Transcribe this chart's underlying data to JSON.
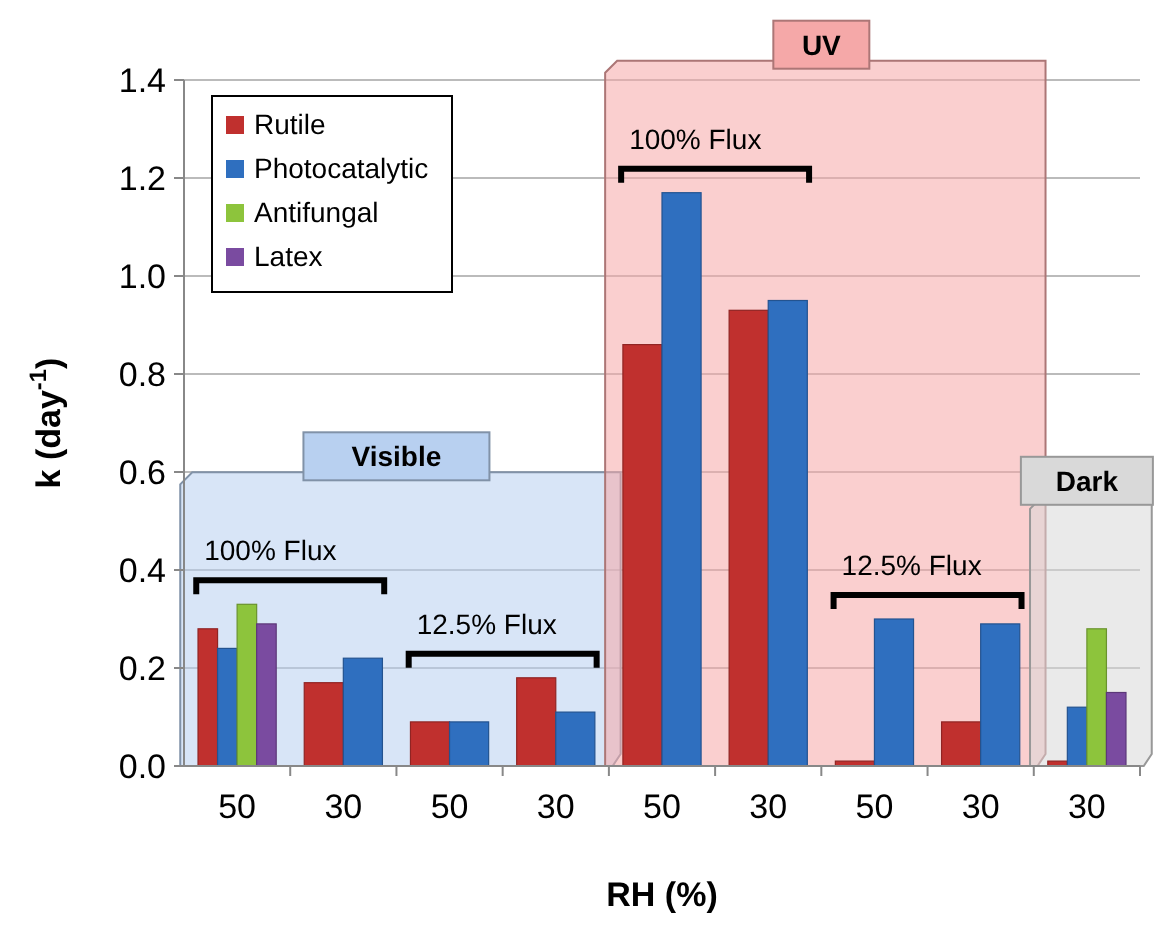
{
  "chart_data": {
    "type": "bar",
    "ylabel": "k (day$^{-1}$)",
    "xlabel": "RH (%)",
    "categories": [
      "50",
      "30",
      "50",
      "30",
      "50",
      "30",
      "50",
      "30",
      "30"
    ],
    "series": [
      {
        "name": "Rutile",
        "color": "#c0302e",
        "values": [
          0.28,
          0.17,
          0.09,
          0.18,
          0.86,
          0.93,
          0.01,
          0.09,
          0.01
        ]
      },
      {
        "name": "Photocatalytic",
        "color": "#2f6fbf",
        "values": [
          0.24,
          0.22,
          0.09,
          0.11,
          1.17,
          0.95,
          0.3,
          0.29,
          0.12
        ]
      },
      {
        "name": "Antifungal",
        "color": "#8dc43c",
        "values": [
          0.33,
          null,
          null,
          null,
          null,
          null,
          null,
          null,
          0.28
        ]
      },
      {
        "name": "Latex",
        "color": "#7a4ba0",
        "values": [
          0.29,
          null,
          null,
          null,
          null,
          null,
          null,
          null,
          0.15
        ]
      }
    ],
    "ylim": [
      0,
      1.4
    ],
    "yticks": [
      {
        "value": 0,
        "label": "0.0"
      },
      0.2,
      0.4,
      0.6,
      0.8,
      {
        "value": 1,
        "label": "1.0"
      },
      1.2,
      1.4
    ],
    "grid": "y",
    "legend": "top left",
    "annotations": [
      "100% Flux",
      "12.5% Flux",
      "100% Flux",
      "12.5% Flux",
      "Visible",
      "UV",
      "Dark"
    ]
  }
}
